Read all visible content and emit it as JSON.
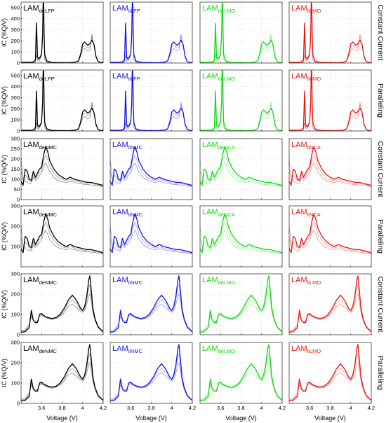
{
  "colors": {
    "black": "#000000",
    "blue": "#1414e6",
    "green": "#14d814",
    "red": "#e61414"
  },
  "chart_data": {
    "type": "line",
    "xlabel": "Voltage (V)",
    "ylabel": "IC (%Q/V)",
    "xlim": [
      3.4,
      4.2
    ],
    "xticks": [
      3.6,
      3.8,
      4.0,
      4.2
    ],
    "xtick_labels": [
      "3.6",
      "3.8",
      "4",
      "4.2"
    ],
    "grid": true,
    "row_labels": [
      "Constant Current",
      "Paralleling",
      "Constant Current",
      "Paralleling",
      "Constant Current",
      "Paralleling"
    ],
    "rows": [
      {
        "ylim": [
          0,
          550
        ],
        "yticks": [
          0,
          100,
          200,
          300,
          400,
          500
        ]
      },
      {
        "ylim": [
          0,
          550
        ],
        "yticks": [
          0,
          100,
          200,
          300,
          400,
          500
        ]
      },
      {
        "ylim": [
          0,
          300
        ],
        "yticks": [
          0,
          50,
          100,
          150,
          200,
          250,
          300
        ]
      },
      {
        "ylim": [
          0,
          300
        ],
        "yticks": [
          100,
          200,
          300
        ]
      },
      {
        "ylim": [
          0,
          300
        ],
        "yticks": [
          0,
          100,
          200,
          300
        ]
      },
      {
        "ylim": [
          0,
          300
        ],
        "yticks": [
          0,
          100,
          200,
          300
        ]
      }
    ],
    "panels": [
      {
        "row": 0,
        "col": 0,
        "label": "LAM",
        "sub": "deLFP",
        "color": "black",
        "family": "lfp"
      },
      {
        "row": 0,
        "col": 1,
        "label": "LAM",
        "sub": "liLFP",
        "color": "blue",
        "family": "lfp"
      },
      {
        "row": 0,
        "col": 2,
        "label": "LAM",
        "sub": "deLMO",
        "color": "green",
        "family": "lfp"
      },
      {
        "row": 0,
        "col": 3,
        "label": "LAM",
        "sub": "liLMO",
        "color": "red",
        "family": "lfp"
      },
      {
        "row": 1,
        "col": 0,
        "label": "LAM",
        "sub": "deLFP",
        "color": "black",
        "family": "lfp"
      },
      {
        "row": 1,
        "col": 1,
        "label": "LAM",
        "sub": "liLFP",
        "color": "blue",
        "family": "lfp"
      },
      {
        "row": 1,
        "col": 2,
        "label": "LAM",
        "sub": "deLMO",
        "color": "green",
        "family": "lfp"
      },
      {
        "row": 1,
        "col": 3,
        "label": "LAM",
        "sub": "liLMO",
        "color": "red",
        "family": "lfp"
      },
      {
        "row": 2,
        "col": 0,
        "label": "LAM",
        "sub": "deNMC",
        "color": "black",
        "family": "nca"
      },
      {
        "row": 2,
        "col": 1,
        "label": "LAM",
        "sub": "liNMC",
        "color": "blue",
        "family": "nca"
      },
      {
        "row": 2,
        "col": 2,
        "label": "LAM",
        "sub": "deNCA",
        "color": "green",
        "family": "nca"
      },
      {
        "row": 2,
        "col": 3,
        "label": "LAM",
        "sub": "liNCA",
        "color": "red",
        "family": "nca"
      },
      {
        "row": 3,
        "col": 0,
        "label": "LAM",
        "sub": "deNMC",
        "color": "black",
        "family": "nca"
      },
      {
        "row": 3,
        "col": 1,
        "label": "LAM",
        "sub": "liNMC",
        "color": "blue",
        "family": "nca"
      },
      {
        "row": 3,
        "col": 2,
        "label": "LAM",
        "sub": "deNCA",
        "color": "green",
        "family": "nca"
      },
      {
        "row": 3,
        "col": 3,
        "label": "LAM",
        "sub": "liNCA",
        "color": "red",
        "family": "nca"
      },
      {
        "row": 4,
        "col": 0,
        "label": "LAM",
        "sub": "deNMC",
        "color": "black",
        "family": "lmo"
      },
      {
        "row": 4,
        "col": 1,
        "label": "LAM",
        "sub": "liNMC",
        "color": "blue",
        "family": "lmo"
      },
      {
        "row": 4,
        "col": 2,
        "label": "LAM",
        "sub": "deLMO",
        "color": "green",
        "family": "lmo"
      },
      {
        "row": 4,
        "col": 3,
        "label": "LAM",
        "sub": "liLMO",
        "color": "red",
        "family": "lmo"
      },
      {
        "row": 5,
        "col": 0,
        "label": "LAM",
        "sub": "deNMC",
        "color": "black",
        "family": "lmo"
      },
      {
        "row": 5,
        "col": 1,
        "label": "LAM",
        "sub": "liNMC",
        "color": "blue",
        "family": "lmo"
      },
      {
        "row": 5,
        "col": 2,
        "label": "LAM",
        "sub": "deLMO",
        "color": "green",
        "family": "lmo"
      },
      {
        "row": 5,
        "col": 3,
        "label": "LAM",
        "sub": "liLMO",
        "color": "red",
        "family": "lmo"
      }
    ],
    "families": {
      "lfp": {
        "x": [
          3.4,
          3.44,
          3.48,
          3.5,
          3.52,
          3.54,
          3.545,
          3.55,
          3.555,
          3.56,
          3.57,
          3.58,
          3.6,
          3.61,
          3.615,
          3.62,
          3.625,
          3.63,
          3.65,
          3.7,
          3.8,
          3.88,
          3.93,
          3.96,
          3.98,
          4.0,
          4.02,
          4.05,
          4.07,
          4.09,
          4.11,
          4.13,
          4.15,
          4.17,
          4.2
        ],
        "y": [
          6,
          6,
          7,
          8,
          10,
          30,
          200,
          360,
          220,
          60,
          40,
          45,
          80,
          250,
          540,
          540,
          250,
          80,
          20,
          5,
          3,
          4,
          8,
          20,
          80,
          170,
          190,
          160,
          175,
          205,
          170,
          60,
          15,
          6,
          4
        ],
        "alt": [
          2,
          2,
          2,
          2,
          2,
          5,
          40,
          70,
          50,
          20,
          15,
          25,
          70,
          280,
          550,
          550,
          260,
          30,
          5,
          2,
          2,
          3,
          6,
          15,
          60,
          120,
          130,
          110,
          120,
          260,
          160,
          50,
          12,
          5,
          3
        ]
      },
      "nca": {
        "x": [
          3.4,
          3.42,
          3.44,
          3.46,
          3.48,
          3.5,
          3.52,
          3.54,
          3.56,
          3.58,
          3.6,
          3.62,
          3.64,
          3.66,
          3.68,
          3.72,
          3.76,
          3.8,
          3.84,
          3.88,
          3.92,
          3.96,
          4.0,
          4.04,
          4.08,
          4.12,
          4.16,
          4.2
        ],
        "y": [
          90,
          70,
          150,
          140,
          100,
          95,
          140,
          110,
          130,
          150,
          160,
          220,
          260,
          235,
          190,
          150,
          125,
          110,
          100,
          110,
          100,
          95,
          90,
          85,
          85,
          80,
          75,
          70
        ],
        "alt": [
          200,
          110,
          90,
          85,
          80,
          80,
          110,
          95,
          105,
          120,
          130,
          165,
          180,
          160,
          135,
          110,
          95,
          88,
          84,
          90,
          84,
          80,
          76,
          74,
          72,
          70,
          66,
          62
        ]
      },
      "lmo": {
        "x": [
          3.4,
          3.44,
          3.48,
          3.5,
          3.52,
          3.54,
          3.56,
          3.58,
          3.6,
          3.62,
          3.64,
          3.66,
          3.7,
          3.74,
          3.78,
          3.82,
          3.86,
          3.9,
          3.94,
          3.98,
          4.0,
          4.02,
          4.04,
          4.06,
          4.07,
          4.08,
          4.1,
          4.12,
          4.15,
          4.2
        ],
        "y": [
          12,
          15,
          35,
          120,
          70,
          60,
          60,
          100,
          105,
          95,
          90,
          85,
          80,
          85,
          100,
          130,
          170,
          195,
          170,
          130,
          120,
          140,
          190,
          270,
          290,
          240,
          130,
          80,
          40,
          15
        ],
        "alt": [
          20,
          25,
          50,
          90,
          70,
          65,
          70,
          90,
          95,
          90,
          85,
          80,
          75,
          78,
          90,
          110,
          140,
          150,
          135,
          115,
          110,
          120,
          150,
          190,
          200,
          175,
          110,
          70,
          35,
          12
        ]
      }
    }
  }
}
